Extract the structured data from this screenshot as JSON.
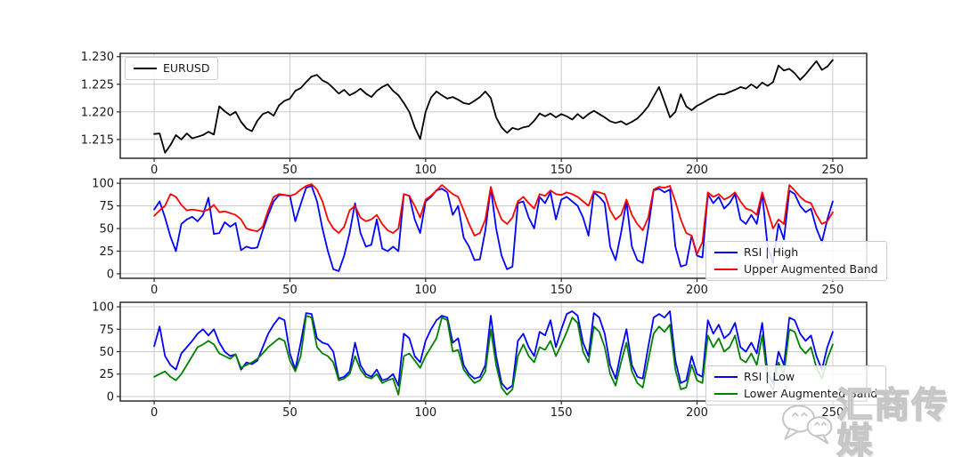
{
  "watermark": {
    "text": "汇商传媒",
    "icon": "wechat-chat-bubbles",
    "color": "#c6c6c6"
  },
  "colors": {
    "grid": "#cccccc",
    "spine": "#2b2b2b",
    "tick_label": "#1a1a1a"
  },
  "chart_data": [
    {
      "type": "line",
      "title": "",
      "xlabel": "",
      "ylabel": "",
      "xlim": [
        -12.5,
        262.5
      ],
      "ylim": [
        1.2116,
        1.2306
      ],
      "xticks": [
        0,
        50,
        100,
        150,
        200,
        250
      ],
      "yticks": [
        1.215,
        1.22,
        1.225,
        1.23
      ],
      "ytick_labels": [
        "1.215",
        "1.220",
        "1.225",
        "1.230"
      ],
      "grid": true,
      "legend_position": "upper left",
      "series": [
        {
          "name": "EURUSD",
          "color": "#000000",
          "x_start": 0,
          "x_step": 2,
          "values": [
            1.216,
            1.2161,
            1.2126,
            1.214,
            1.2158,
            1.215,
            1.2161,
            1.2152,
            1.2155,
            1.2158,
            1.2164,
            1.2159,
            1.221,
            1.2201,
            1.2194,
            1.22,
            1.2182,
            1.217,
            1.2165,
            1.2184,
            1.2196,
            1.22,
            1.2193,
            1.2212,
            1.222,
            1.2224,
            1.2238,
            1.2243,
            1.2254,
            1.2264,
            1.2267,
            1.2257,
            1.2252,
            1.2243,
            1.2233,
            1.224,
            1.223,
            1.2235,
            1.2242,
            1.2233,
            1.2227,
            1.2238,
            1.2245,
            1.225,
            1.2238,
            1.223,
            1.2216,
            1.22,
            1.2172,
            1.2151,
            1.22,
            1.2226,
            1.2237,
            1.223,
            1.2224,
            1.2227,
            1.2222,
            1.2216,
            1.2214,
            1.222,
            1.2227,
            1.2237,
            1.2225,
            1.219,
            1.2172,
            1.2162,
            1.2171,
            1.2168,
            1.2172,
            1.2174,
            1.2184,
            1.2197,
            1.2192,
            1.2197,
            1.219,
            1.2196,
            1.2192,
            1.2186,
            1.2196,
            1.2188,
            1.2196,
            1.2202,
            1.2196,
            1.219,
            1.2183,
            1.218,
            1.2183,
            1.2177,
            1.2182,
            1.2188,
            1.2198,
            1.221,
            1.2228,
            1.2245,
            1.2218,
            1.219,
            1.22,
            1.2232,
            1.221,
            1.2203,
            1.2211,
            1.2216,
            1.2222,
            1.2227,
            1.2232,
            1.2232,
            1.2236,
            1.224,
            1.2245,
            1.2242,
            1.225,
            1.2243,
            1.2253,
            1.2247,
            1.2254,
            1.2284,
            1.2275,
            1.2278,
            1.227,
            1.2258,
            1.2268,
            1.228,
            1.2292,
            1.2276,
            1.2282,
            1.2294
          ]
        }
      ]
    },
    {
      "type": "line",
      "title": "",
      "xlabel": "",
      "ylabel": "",
      "xlim": [
        -12.5,
        262.5
      ],
      "ylim": [
        -5,
        105
      ],
      "xticks": [
        0,
        50,
        100,
        150,
        200,
        250
      ],
      "yticks": [
        0,
        25,
        50,
        75,
        100
      ],
      "ytick_labels": [
        "0",
        "25",
        "50",
        "75",
        "100"
      ],
      "grid": true,
      "legend_position": "lower right",
      "series": [
        {
          "name": "RSI | High",
          "color": "#0000ff",
          "x_start": 0,
          "x_step": 2,
          "values": [
            71,
            80,
            62,
            41,
            25,
            55,
            60,
            63,
            58,
            65,
            84,
            44,
            45,
            57,
            52,
            56,
            26,
            30,
            28,
            29,
            48,
            65,
            80,
            87,
            87,
            86,
            58,
            77,
            95,
            97,
            80,
            50,
            25,
            5,
            3,
            20,
            45,
            78,
            45,
            30,
            32,
            60,
            28,
            25,
            30,
            25,
            88,
            86,
            60,
            45,
            80,
            85,
            92,
            94,
            90,
            65,
            75,
            40,
            30,
            15,
            16,
            48,
            95,
            50,
            20,
            5,
            8,
            78,
            80,
            62,
            50,
            85,
            78,
            90,
            60,
            82,
            85,
            80,
            75,
            62,
            42,
            90,
            85,
            78,
            30,
            15,
            45,
            80,
            30,
            15,
            12,
            50,
            92,
            94,
            90,
            93,
            30,
            8,
            10,
            42,
            20,
            18,
            88,
            78,
            85,
            72,
            78,
            88,
            60,
            55,
            65,
            55,
            88,
            30,
            12,
            55,
            38,
            92,
            88,
            75,
            68,
            72,
            50,
            35,
            60,
            80
          ]
        },
        {
          "name": "Upper Augmented Band",
          "color": "#ff0000",
          "x_start": 0,
          "x_step": 2,
          "values": [
            64,
            70,
            75,
            88,
            85,
            76,
            70,
            71,
            70,
            69,
            71,
            76,
            68,
            69,
            67,
            65,
            60,
            50,
            48,
            47,
            52,
            70,
            85,
            88,
            87,
            86,
            88,
            93,
            97,
            99,
            93,
            80,
            60,
            50,
            45,
            52,
            70,
            75,
            62,
            58,
            60,
            65,
            55,
            48,
            45,
            50,
            88,
            86,
            75,
            62,
            82,
            86,
            92,
            98,
            93,
            88,
            85,
            70,
            55,
            42,
            45,
            60,
            96,
            75,
            60,
            55,
            62,
            80,
            85,
            78,
            72,
            88,
            86,
            92,
            88,
            87,
            90,
            88,
            85,
            80,
            75,
            91,
            90,
            88,
            70,
            60,
            65,
            82,
            65,
            55,
            48,
            62,
            93,
            96,
            95,
            97,
            80,
            60,
            45,
            42,
            22,
            35,
            90,
            85,
            88,
            82,
            85,
            90,
            80,
            72,
            70,
            65,
            90,
            70,
            50,
            60,
            55,
            98,
            92,
            85,
            80,
            78,
            65,
            55,
            58,
            68
          ]
        }
      ]
    },
    {
      "type": "line",
      "title": "",
      "xlabel": "",
      "ylabel": "",
      "xlim": [
        -12.5,
        262.5
      ],
      "ylim": [
        -5,
        105
      ],
      "xticks": [
        0,
        50,
        100,
        150,
        200,
        250
      ],
      "yticks": [
        0,
        25,
        50,
        75,
        100
      ],
      "ytick_labels": [
        "0",
        "25",
        "50",
        "75",
        "100"
      ],
      "grid": true,
      "legend_position": "lower right",
      "series": [
        {
          "name": "RSI | Low",
          "color": "#0000ff",
          "x_start": 0,
          "x_step": 2,
          "values": [
            56,
            78,
            45,
            35,
            30,
            48,
            55,
            62,
            70,
            75,
            68,
            75,
            60,
            50,
            45,
            47,
            30,
            38,
            36,
            40,
            55,
            70,
            80,
            88,
            85,
            48,
            30,
            60,
            93,
            92,
            65,
            60,
            58,
            50,
            20,
            22,
            28,
            60,
            35,
            25,
            22,
            30,
            18,
            20,
            25,
            12,
            70,
            65,
            45,
            38,
            62,
            75,
            85,
            90,
            88,
            60,
            65,
            35,
            25,
            20,
            22,
            35,
            90,
            45,
            15,
            8,
            12,
            62,
            70,
            55,
            45,
            72,
            68,
            85,
            55,
            75,
            92,
            95,
            90,
            60,
            45,
            93,
            88,
            70,
            35,
            20,
            50,
            75,
            35,
            22,
            20,
            55,
            88,
            92,
            88,
            95,
            40,
            15,
            18,
            45,
            25,
            22,
            85,
            70,
            80,
            65,
            70,
            82,
            55,
            50,
            60,
            48,
            82,
            25,
            15,
            50,
            35,
            88,
            85,
            70,
            62,
            68,
            45,
            30,
            55,
            72
          ]
        },
        {
          "name": "Lower Augmented Band",
          "color": "#008000",
          "x_start": 0,
          "x_step": 2,
          "values": [
            22,
            25,
            28,
            22,
            18,
            25,
            35,
            45,
            55,
            58,
            62,
            58,
            48,
            45,
            42,
            47,
            32,
            35,
            38,
            42,
            48,
            55,
            60,
            65,
            62,
            40,
            28,
            45,
            90,
            88,
            55,
            48,
            45,
            38,
            18,
            20,
            25,
            45,
            30,
            22,
            20,
            25,
            15,
            18,
            20,
            2,
            45,
            48,
            40,
            32,
            45,
            55,
            65,
            88,
            85,
            50,
            52,
            30,
            22,
            15,
            18,
            28,
            75,
            35,
            10,
            2,
            8,
            45,
            58,
            45,
            38,
            55,
            52,
            62,
            45,
            58,
            72,
            88,
            82,
            50,
            38,
            78,
            72,
            55,
            25,
            12,
            38,
            60,
            28,
            15,
            10,
            40,
            70,
            78,
            72,
            80,
            30,
            8,
            10,
            35,
            18,
            15,
            68,
            55,
            65,
            50,
            55,
            68,
            42,
            38,
            48,
            35,
            68,
            18,
            8,
            38,
            25,
            75,
            72,
            55,
            48,
            55,
            32,
            20,
            42,
            58
          ]
        }
      ]
    }
  ]
}
